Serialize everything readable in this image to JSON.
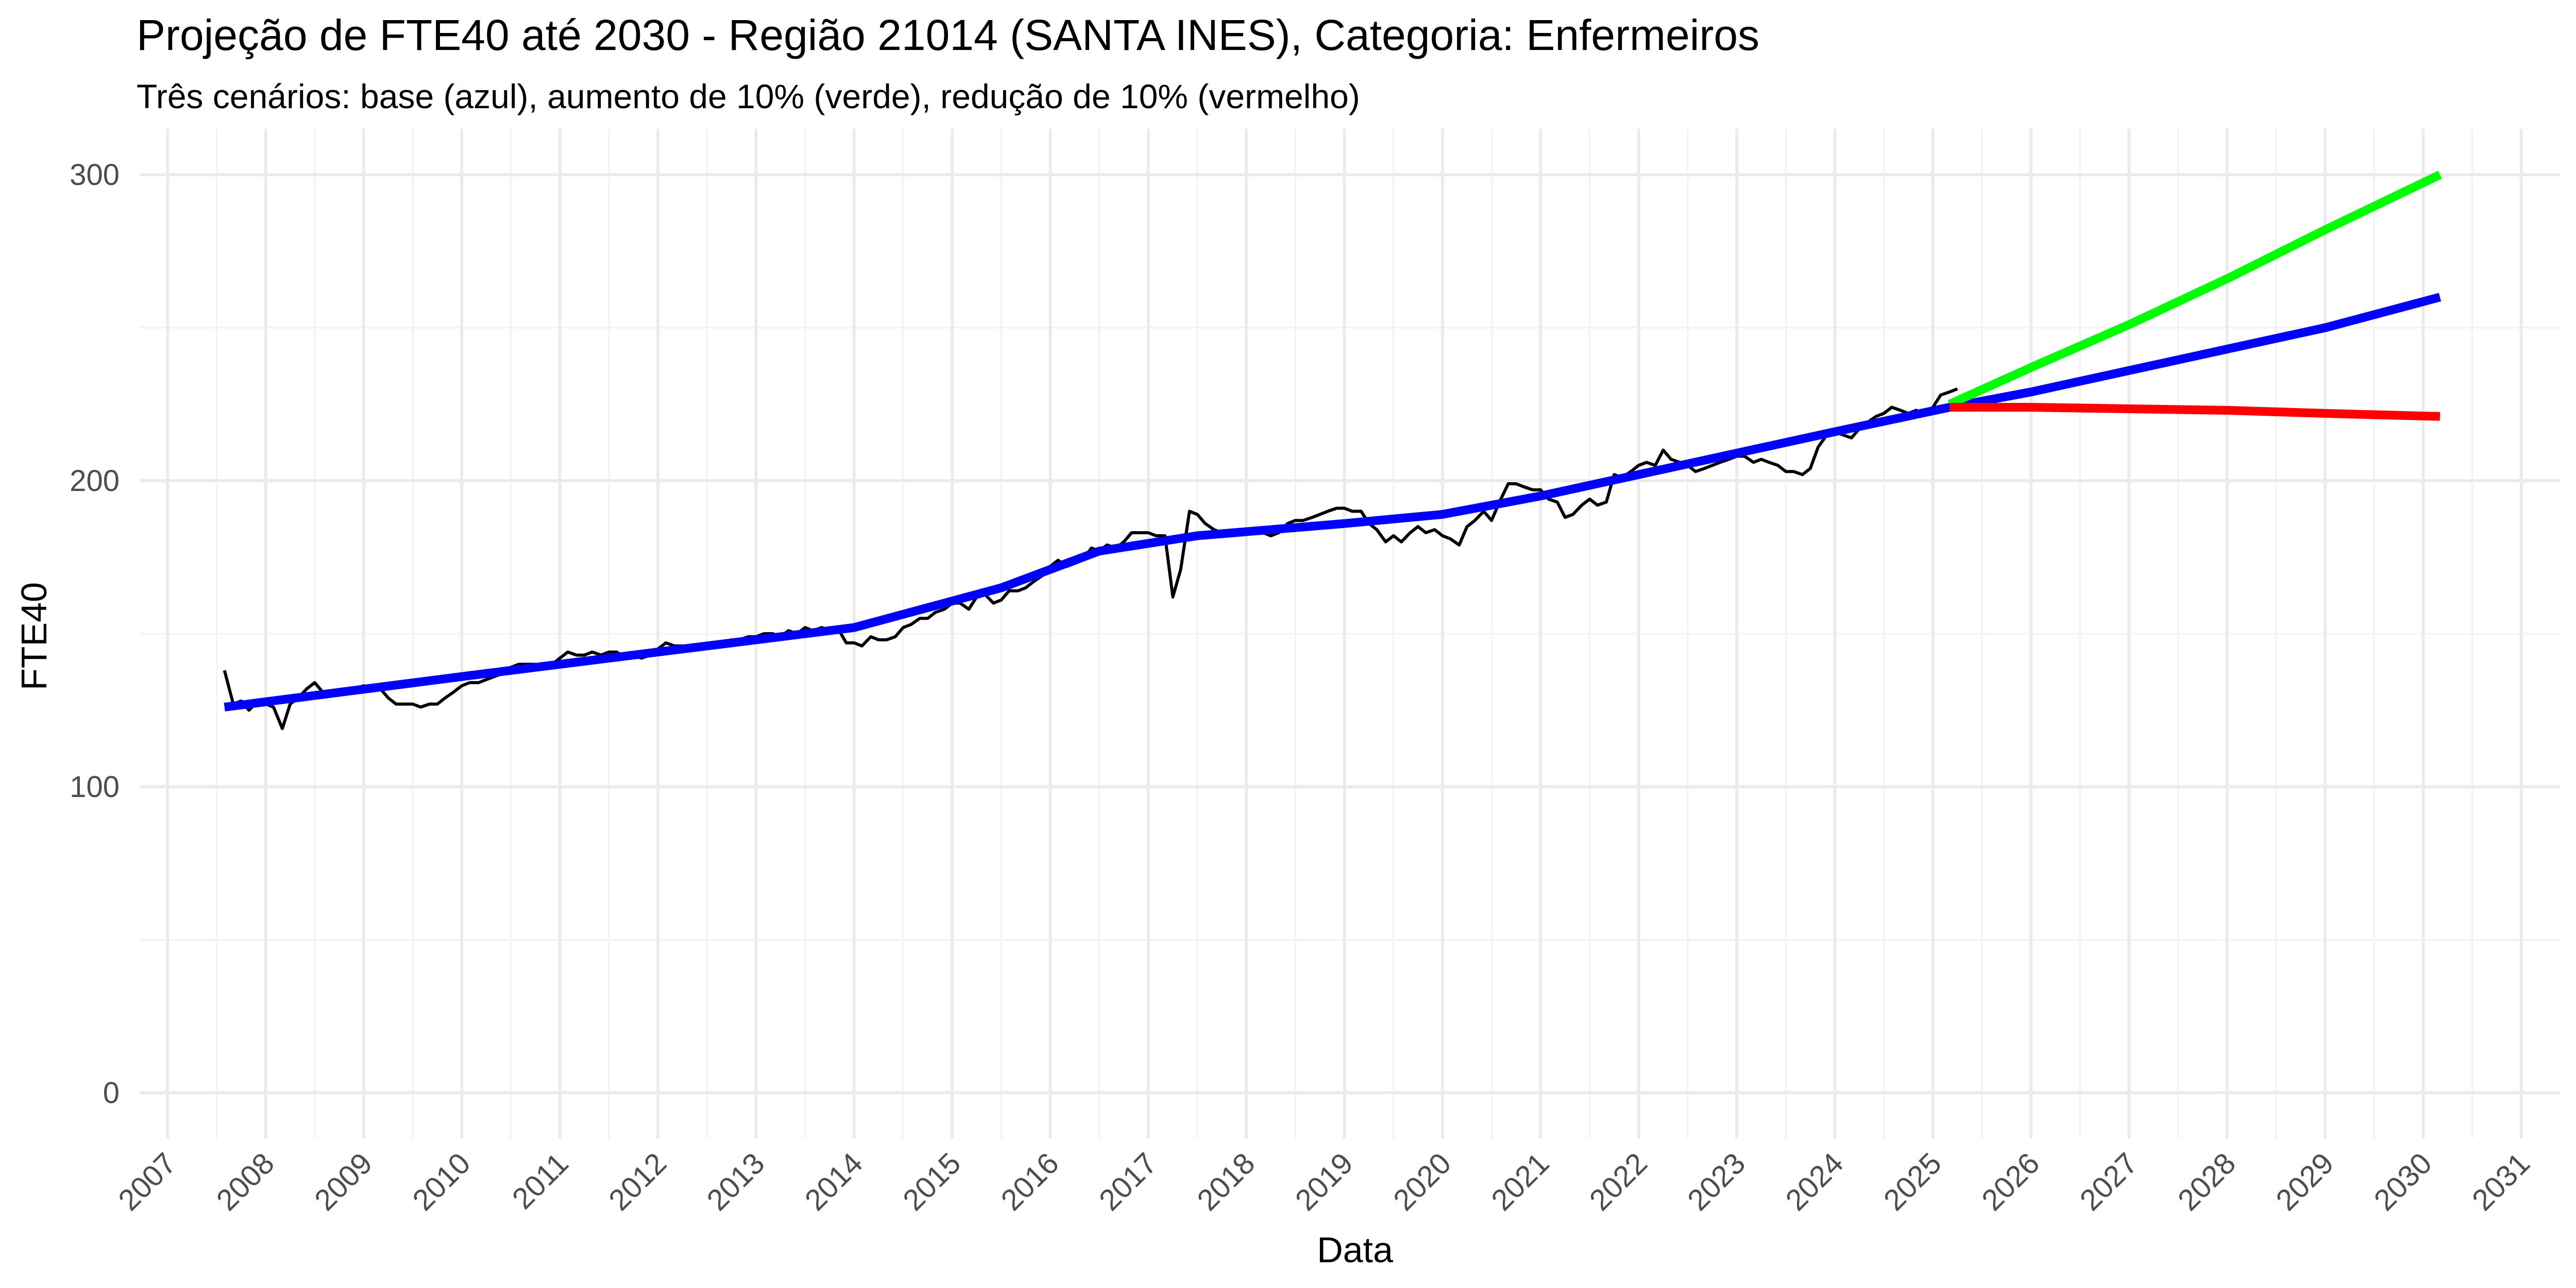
{
  "chart_data": {
    "type": "line",
    "title": "Projeção de FTE40 até 2030 - Região 21014 (SANTA INES), Categoria: Enfermeiros",
    "subtitle": "Três cenários: base (azul), aumento de 10% (verde), redução de 10% (vermelho)",
    "xlabel": "Data",
    "ylabel": "FTE40",
    "xlim": [
      2006.72,
      2031.4
    ],
    "ylim": [
      -15,
      315
    ],
    "x_ticks": [
      "2007",
      "2008",
      "2009",
      "2010",
      "2011",
      "2012",
      "2013",
      "2014",
      "2015",
      "2016",
      "2017",
      "2018",
      "2019",
      "2020",
      "2021",
      "2022",
      "2023",
      "2024",
      "2025",
      "2026",
      "2027",
      "2028",
      "2029",
      "2030",
      "2031"
    ],
    "y_ticks": [
      "0",
      "100",
      "200",
      "300"
    ],
    "grid": true,
    "legend": "none",
    "series": [
      {
        "color": "#000000",
        "stroke": "thin",
        "points": [
          [
            2007.58,
            138
          ],
          [
            2007.67,
            127
          ],
          [
            2007.75,
            128
          ],
          [
            2007.83,
            125
          ],
          [
            2007.92,
            128
          ],
          [
            2008.0,
            127
          ],
          [
            2008.08,
            126
          ],
          [
            2008.17,
            119
          ],
          [
            2008.25,
            127
          ],
          [
            2008.33,
            129
          ],
          [
            2008.42,
            132
          ],
          [
            2008.5,
            134
          ],
          [
            2008.58,
            131
          ],
          [
            2008.67,
            130
          ],
          [
            2008.75,
            130
          ],
          [
            2008.83,
            131
          ],
          [
            2008.92,
            132
          ],
          [
            2009.0,
            133
          ],
          [
            2009.08,
            132
          ],
          [
            2009.17,
            132
          ],
          [
            2009.25,
            129
          ],
          [
            2009.33,
            127
          ],
          [
            2009.42,
            127
          ],
          [
            2009.5,
            127
          ],
          [
            2009.58,
            126
          ],
          [
            2009.67,
            127
          ],
          [
            2009.75,
            127
          ],
          [
            2009.83,
            129
          ],
          [
            2009.92,
            131
          ],
          [
            2010.0,
            133
          ],
          [
            2010.08,
            134
          ],
          [
            2010.17,
            134
          ],
          [
            2010.25,
            135
          ],
          [
            2010.33,
            136
          ],
          [
            2010.42,
            137
          ],
          [
            2010.5,
            139
          ],
          [
            2010.58,
            140
          ],
          [
            2010.67,
            140
          ],
          [
            2010.75,
            140
          ],
          [
            2010.83,
            139
          ],
          [
            2010.92,
            140
          ],
          [
            2011.0,
            142
          ],
          [
            2011.08,
            144
          ],
          [
            2011.17,
            143
          ],
          [
            2011.25,
            143
          ],
          [
            2011.33,
            144
          ],
          [
            2011.42,
            143
          ],
          [
            2011.5,
            144
          ],
          [
            2011.58,
            144
          ],
          [
            2011.67,
            142
          ],
          [
            2011.75,
            143
          ],
          [
            2011.83,
            142
          ],
          [
            2011.92,
            143
          ],
          [
            2012.0,
            145
          ],
          [
            2012.08,
            147
          ],
          [
            2012.17,
            146
          ],
          [
            2012.25,
            146
          ],
          [
            2012.33,
            145
          ],
          [
            2012.42,
            146
          ],
          [
            2012.5,
            146
          ],
          [
            2012.58,
            147
          ],
          [
            2012.67,
            147
          ],
          [
            2012.75,
            148
          ],
          [
            2012.83,
            148
          ],
          [
            2012.92,
            149
          ],
          [
            2013.0,
            149
          ],
          [
            2013.08,
            150
          ],
          [
            2013.17,
            150
          ],
          [
            2013.25,
            149
          ],
          [
            2013.33,
            151
          ],
          [
            2013.42,
            150
          ],
          [
            2013.5,
            152
          ],
          [
            2013.58,
            151
          ],
          [
            2013.67,
            152
          ],
          [
            2013.75,
            151
          ],
          [
            2013.83,
            152
          ],
          [
            2013.92,
            147
          ],
          [
            2014.0,
            147
          ],
          [
            2014.08,
            146
          ],
          [
            2014.17,
            149
          ],
          [
            2014.25,
            148
          ],
          [
            2014.33,
            148
          ],
          [
            2014.42,
            149
          ],
          [
            2014.5,
            152
          ],
          [
            2014.58,
            153
          ],
          [
            2014.67,
            155
          ],
          [
            2014.75,
            155
          ],
          [
            2014.83,
            157
          ],
          [
            2014.92,
            158
          ],
          [
            2015.0,
            160
          ],
          [
            2015.08,
            160
          ],
          [
            2015.17,
            158
          ],
          [
            2015.25,
            162
          ],
          [
            2015.33,
            163
          ],
          [
            2015.42,
            160
          ],
          [
            2015.5,
            161
          ],
          [
            2015.58,
            164
          ],
          [
            2015.67,
            164
          ],
          [
            2015.75,
            165
          ],
          [
            2015.83,
            167
          ],
          [
            2015.92,
            169
          ],
          [
            2016.0,
            172
          ],
          [
            2016.08,
            174
          ],
          [
            2016.17,
            172
          ],
          [
            2016.25,
            173
          ],
          [
            2016.33,
            174
          ],
          [
            2016.42,
            178
          ],
          [
            2016.5,
            177
          ],
          [
            2016.58,
            179
          ],
          [
            2016.67,
            178
          ],
          [
            2016.75,
            180
          ],
          [
            2016.83,
            183
          ],
          [
            2016.92,
            183
          ],
          [
            2017.0,
            183
          ],
          [
            2017.08,
            182
          ],
          [
            2017.17,
            182
          ],
          [
            2017.25,
            162
          ],
          [
            2017.33,
            171
          ],
          [
            2017.42,
            190
          ],
          [
            2017.5,
            189
          ],
          [
            2017.58,
            186
          ],
          [
            2017.67,
            184
          ],
          [
            2017.75,
            183
          ],
          [
            2017.83,
            183
          ],
          [
            2017.92,
            184
          ],
          [
            2018.0,
            183
          ],
          [
            2018.08,
            184
          ],
          [
            2018.17,
            183
          ],
          [
            2018.25,
            182
          ],
          [
            2018.33,
            183
          ],
          [
            2018.42,
            186
          ],
          [
            2018.5,
            187
          ],
          [
            2018.58,
            187
          ],
          [
            2018.67,
            188
          ],
          [
            2018.75,
            189
          ],
          [
            2018.83,
            190
          ],
          [
            2018.92,
            191
          ],
          [
            2019.0,
            191
          ],
          [
            2019.08,
            190
          ],
          [
            2019.17,
            190
          ],
          [
            2019.25,
            186
          ],
          [
            2019.33,
            184
          ],
          [
            2019.42,
            180
          ],
          [
            2019.5,
            182
          ],
          [
            2019.58,
            180
          ],
          [
            2019.67,
            183
          ],
          [
            2019.75,
            185
          ],
          [
            2019.83,
            183
          ],
          [
            2019.92,
            184
          ],
          [
            2020.0,
            182
          ],
          [
            2020.08,
            181
          ],
          [
            2020.17,
            179
          ],
          [
            2020.25,
            185
          ],
          [
            2020.33,
            187
          ],
          [
            2020.42,
            190
          ],
          [
            2020.5,
            187
          ],
          [
            2020.58,
            193
          ],
          [
            2020.67,
            199
          ],
          [
            2020.75,
            199
          ],
          [
            2020.83,
            198
          ],
          [
            2020.92,
            197
          ],
          [
            2021.0,
            197
          ],
          [
            2021.08,
            194
          ],
          [
            2021.17,
            193
          ],
          [
            2021.25,
            188
          ],
          [
            2021.33,
            189
          ],
          [
            2021.42,
            192
          ],
          [
            2021.5,
            194
          ],
          [
            2021.58,
            192
          ],
          [
            2021.67,
            193
          ],
          [
            2021.75,
            202
          ],
          [
            2021.83,
            201
          ],
          [
            2021.92,
            203
          ],
          [
            2022.0,
            205
          ],
          [
            2022.08,
            206
          ],
          [
            2022.17,
            205
          ],
          [
            2022.25,
            210
          ],
          [
            2022.33,
            207
          ],
          [
            2022.42,
            206
          ],
          [
            2022.5,
            205
          ],
          [
            2022.58,
            203
          ],
          [
            2022.67,
            204
          ],
          [
            2022.75,
            205
          ],
          [
            2022.83,
            206
          ],
          [
            2022.92,
            207
          ],
          [
            2023.0,
            208
          ],
          [
            2023.08,
            208
          ],
          [
            2023.17,
            206
          ],
          [
            2023.25,
            207
          ],
          [
            2023.33,
            206
          ],
          [
            2023.42,
            205
          ],
          [
            2023.5,
            203
          ],
          [
            2023.58,
            203
          ],
          [
            2023.67,
            202
          ],
          [
            2023.75,
            204
          ],
          [
            2023.83,
            211
          ],
          [
            2023.92,
            215
          ],
          [
            2024.0,
            216
          ],
          [
            2024.08,
            215
          ],
          [
            2024.17,
            214
          ],
          [
            2024.25,
            217
          ],
          [
            2024.33,
            219
          ],
          [
            2024.42,
            221
          ],
          [
            2024.5,
            222
          ],
          [
            2024.58,
            224
          ],
          [
            2024.67,
            223
          ],
          [
            2024.75,
            222
          ],
          [
            2024.83,
            223
          ],
          [
            2024.92,
            222
          ],
          [
            2025.0,
            224
          ],
          [
            2025.08,
            228
          ],
          [
            2025.17,
            229
          ],
          [
            2025.25,
            230
          ]
        ]
      },
      {
        "color": "#0000ff",
        "stroke": "thick",
        "points": [
          [
            2007.58,
            126
          ],
          [
            2010.0,
            136
          ],
          [
            2012.0,
            144
          ],
          [
            2014.0,
            152
          ],
          [
            2015.5,
            165
          ],
          [
            2016.5,
            177
          ],
          [
            2017.5,
            182
          ],
          [
            2019.0,
            186
          ],
          [
            2020.0,
            189
          ],
          [
            2021.0,
            195
          ],
          [
            2022.0,
            202
          ],
          [
            2023.0,
            209
          ],
          [
            2024.0,
            216
          ],
          [
            2025.17,
            224
          ],
          [
            2026.0,
            229
          ],
          [
            2027.0,
            236
          ],
          [
            2028.0,
            243
          ],
          [
            2029.0,
            250
          ],
          [
            2030.17,
            260
          ]
        ]
      },
      {
        "color": "#00ff00",
        "stroke": "thick",
        "points": [
          [
            2025.17,
            225
          ],
          [
            2026.0,
            237
          ],
          [
            2027.0,
            251
          ],
          [
            2028.0,
            266
          ],
          [
            2029.0,
            282
          ],
          [
            2030.17,
            300
          ]
        ]
      },
      {
        "color": "#ff0000",
        "stroke": "thick",
        "points": [
          [
            2025.17,
            224
          ],
          [
            2026.0,
            224
          ],
          [
            2027.0,
            223.5
          ],
          [
            2028.0,
            223
          ],
          [
            2029.0,
            222
          ],
          [
            2030.17,
            221
          ]
        ]
      }
    ]
  }
}
